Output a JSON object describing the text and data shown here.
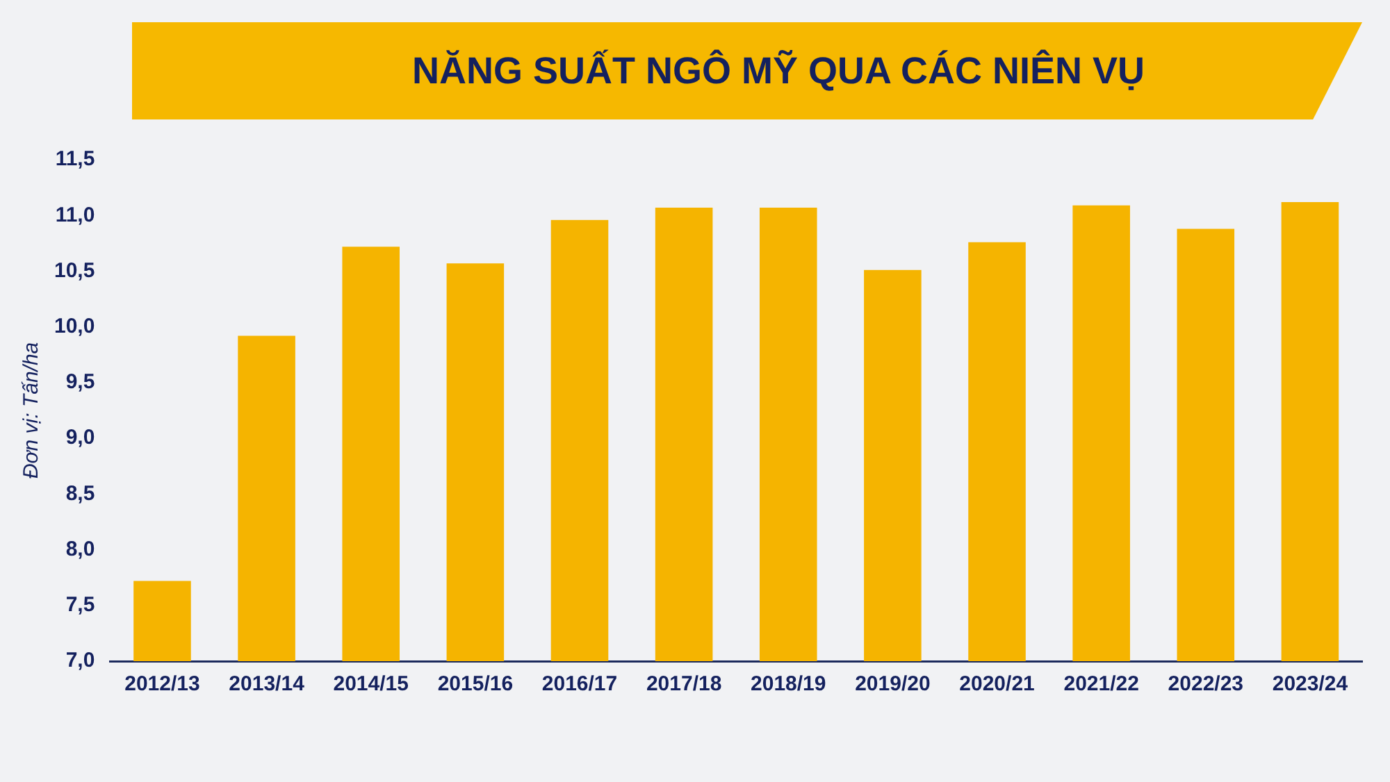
{
  "chart_data": {
    "type": "bar",
    "title": "NĂNG SUẤT NGÔ MỸ QUA CÁC NIÊN VỤ",
    "ylabel": "Đơn vị: Tấn/ha",
    "categories": [
      "2012/13",
      "2013/14",
      "2014/15",
      "2015/16",
      "2016/17",
      "2017/18",
      "2018/19",
      "2019/20",
      "2020/21",
      "2021/22",
      "2022/23",
      "2023/24"
    ],
    "values": [
      7.72,
      9.92,
      10.72,
      10.57,
      10.96,
      11.07,
      11.07,
      10.51,
      10.76,
      11.09,
      10.88,
      11.12
    ],
    "color": "#f5b400",
    "ylim": [
      7,
      11.5
    ],
    "yticks": [
      {
        "value": 7,
        "label": "7,0"
      },
      {
        "value": 7.5,
        "label": "7,5"
      },
      {
        "value": 8,
        "label": "8,0"
      },
      {
        "value": 8.5,
        "label": "8,5"
      },
      {
        "value": 9,
        "label": "9,0"
      },
      {
        "value": 9.5,
        "label": "9,5"
      },
      {
        "value": 10,
        "label": "10,0"
      },
      {
        "value": 10.5,
        "label": "10,5"
      },
      {
        "value": 11,
        "label": "11,0"
      },
      {
        "value": 11.5,
        "label": "11,5"
      }
    ],
    "grid": false,
    "legend": false
  }
}
